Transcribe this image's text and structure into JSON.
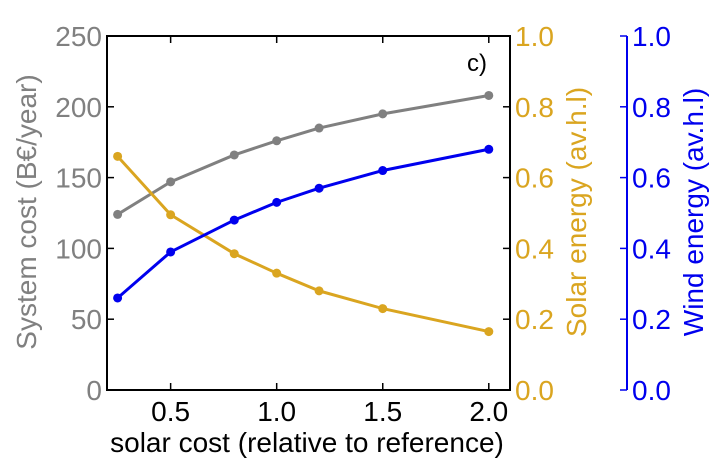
{
  "chart_data": {
    "type": "line",
    "panel_label": "c)",
    "xlabel": "solar cost (relative to reference)",
    "xlim": [
      0.2,
      2.1
    ],
    "xticks": [
      0.5,
      1.0,
      1.5,
      2.0
    ],
    "xtick_labels": [
      "0.5",
      "1.0",
      "1.5",
      "2.0"
    ],
    "axes": {
      "left": {
        "label": "System cost (B€/year)",
        "color": "#808080",
        "ylim": [
          0,
          250
        ],
        "ticks": [
          0,
          50,
          100,
          150,
          200,
          250
        ],
        "tick_labels": [
          "0",
          "50",
          "100",
          "150",
          "200",
          "250"
        ]
      },
      "right1": {
        "label": "Solar energy (av.h.l)",
        "color": "#DAA520",
        "ylim": [
          0,
          1
        ],
        "ticks": [
          0,
          0.2,
          0.4,
          0.6,
          0.8,
          1.0
        ],
        "tick_labels": [
          "0.0",
          "0.2",
          "0.4",
          "0.6",
          "0.8",
          "1.0"
        ]
      },
      "right2": {
        "label": "Wind energy (av.h.l)",
        "color": "#0000EE",
        "ylim": [
          0,
          1
        ],
        "ticks": [
          0,
          0.2,
          0.4,
          0.6,
          0.8,
          1.0
        ],
        "tick_labels": [
          "0.0",
          "0.2",
          "0.4",
          "0.6",
          "0.8",
          "1.0"
        ]
      }
    },
    "x": [
      0.25,
      0.5,
      0.8,
      1.0,
      1.2,
      1.5,
      2.0
    ],
    "series": [
      {
        "name": "System cost",
        "axis": "left",
        "color": "#808080",
        "values": [
          124,
          147,
          166,
          176,
          185,
          195,
          208
        ]
      },
      {
        "name": "Solar energy",
        "axis": "right1",
        "color": "#DAA520",
        "values": [
          0.66,
          0.495,
          0.385,
          0.33,
          0.28,
          0.23,
          0.165
        ]
      },
      {
        "name": "Wind energy",
        "axis": "right2",
        "color": "#0000EE",
        "values": [
          0.26,
          0.39,
          0.48,
          0.53,
          0.57,
          0.62,
          0.68
        ]
      }
    ]
  }
}
